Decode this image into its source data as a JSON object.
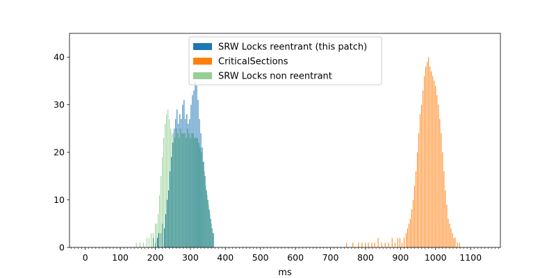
{
  "chart_data": {
    "type": "bar",
    "subtype": "histogram",
    "title": "",
    "xlabel": "ms",
    "ylabel": "",
    "xlim": [
      -45,
      1185
    ],
    "ylim": [
      0,
      45
    ],
    "x_major_ticks": [
      0,
      100,
      200,
      300,
      400,
      500,
      600,
      700,
      800,
      900,
      1000,
      1100
    ],
    "x_minor_tick_step": 10,
    "y_ticks": [
      0,
      10,
      20,
      30,
      40
    ],
    "bin_width": 2,
    "legend_position": "top-center",
    "grid": false,
    "series": [
      {
        "name": "SRW Locks reentrant (this patch)",
        "color": "#1f77b4",
        "opacity": 1,
        "centers": [
          194,
          200,
          206,
          210,
          216,
          220,
          226,
          230,
          234,
          238,
          242,
          246,
          250,
          254,
          258,
          262,
          266,
          270,
          274,
          278,
          282,
          286,
          290,
          294,
          298,
          302,
          306,
          310,
          314,
          318,
          322,
          326,
          330,
          334,
          338,
          342,
          346,
          350,
          354,
          358,
          362,
          366
        ],
        "values": [
          2,
          1,
          2,
          3,
          3,
          5,
          4,
          7,
          10,
          12,
          16,
          19,
          22,
          25,
          27,
          29,
          26,
          28,
          27,
          30,
          31,
          27,
          28,
          26,
          27,
          30,
          32,
          33,
          35,
          34,
          31,
          27,
          24,
          21,
          18,
          15,
          12,
          10,
          8,
          6,
          4,
          3
        ]
      },
      {
        "name": "CriticalSections",
        "color": "#ff7f0e",
        "opacity": 1,
        "centers": [
          746,
          764,
          780,
          790,
          800,
          808,
          818,
          826,
          836,
          846,
          856,
          866,
          876,
          884,
          892,
          898,
          904,
          910,
          916,
          920,
          924,
          928,
          932,
          936,
          940,
          944,
          948,
          952,
          956,
          960,
          964,
          968,
          972,
          976,
          980,
          984,
          988,
          992,
          996,
          1000,
          1004,
          1008,
          1012,
          1016,
          1020,
          1024,
          1028,
          1032,
          1036,
          1040,
          1044,
          1048,
          1052,
          1056,
          1062,
          1068
        ],
        "values": [
          1,
          1,
          1,
          1,
          1,
          1,
          1,
          1,
          2,
          1,
          1,
          1,
          2,
          1,
          2,
          2,
          1,
          2,
          3,
          4,
          5,
          6,
          8,
          10,
          13,
          16,
          20,
          24,
          28,
          30,
          33,
          36,
          38,
          39,
          40,
          38,
          37,
          36,
          35,
          34,
          32,
          30,
          27,
          24,
          20,
          16,
          12,
          9,
          6,
          5,
          4,
          3,
          2,
          2,
          1,
          1
        ]
      },
      {
        "name": "SRW Locks non reentrant",
        "color": "#2ca02c",
        "opacity": 0.5,
        "centers": [
          146,
          156,
          166,
          176,
          182,
          188,
          194,
          200,
          204,
          208,
          212,
          216,
          220,
          224,
          228,
          232,
          236,
          240,
          244,
          248,
          252,
          256,
          260,
          264,
          268,
          272,
          276,
          280,
          284,
          288,
          292,
          296,
          300,
          304,
          308,
          312,
          316,
          320,
          324,
          328,
          332,
          336,
          340,
          344,
          348,
          352,
          356,
          360,
          364
        ],
        "values": [
          1,
          1,
          1,
          2,
          2,
          3,
          3,
          5,
          5,
          7,
          11,
          15,
          19,
          23,
          26,
          28,
          29,
          27,
          25,
          24,
          24,
          23,
          25,
          24,
          23,
          25,
          24,
          24,
          24,
          23,
          25,
          24,
          23,
          24,
          24,
          23,
          23,
          23,
          22,
          21,
          20,
          18,
          16,
          13,
          11,
          9,
          7,
          5,
          3
        ]
      }
    ]
  }
}
